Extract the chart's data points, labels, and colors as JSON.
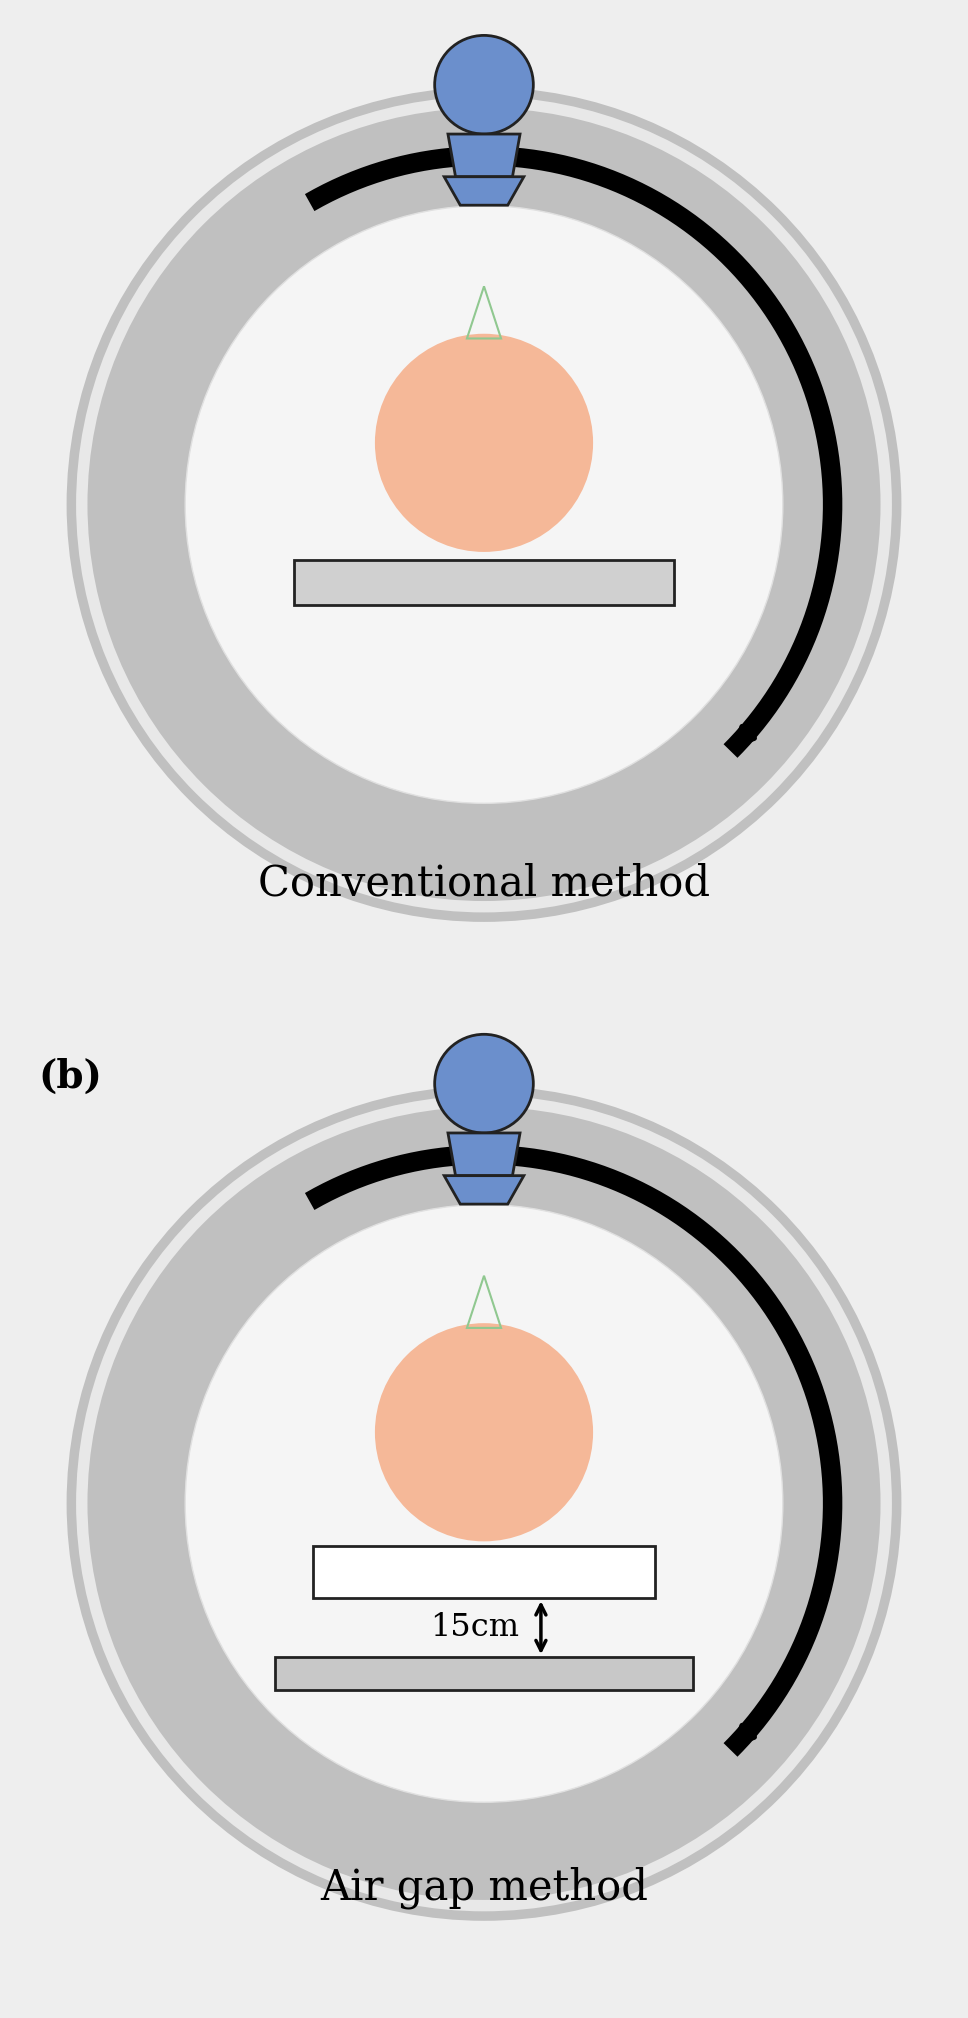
{
  "bg_color": "#eeeeee",
  "ring_outer_color": "#c0c0c0",
  "ring_inner_bg": "#f0f0f0",
  "xray_ball_color": "#6b8fcc",
  "xray_body_color": "#6b8fcc",
  "phantom_color": "#f5b898",
  "table_fill_conv": "#d0d0d0",
  "table_fill_upper": "#ffffff",
  "table_fill_lower": "#c8c8c8",
  "table_edge": "#222222",
  "arrow_color": "#000000",
  "label_b_text": "(b)",
  "label_conv": "Conventional method",
  "label_air": "Air gap method",
  "air_gap_text": "15cm",
  "title_fontsize": 30,
  "label_fontsize": 26,
  "b_fontsize": 28
}
